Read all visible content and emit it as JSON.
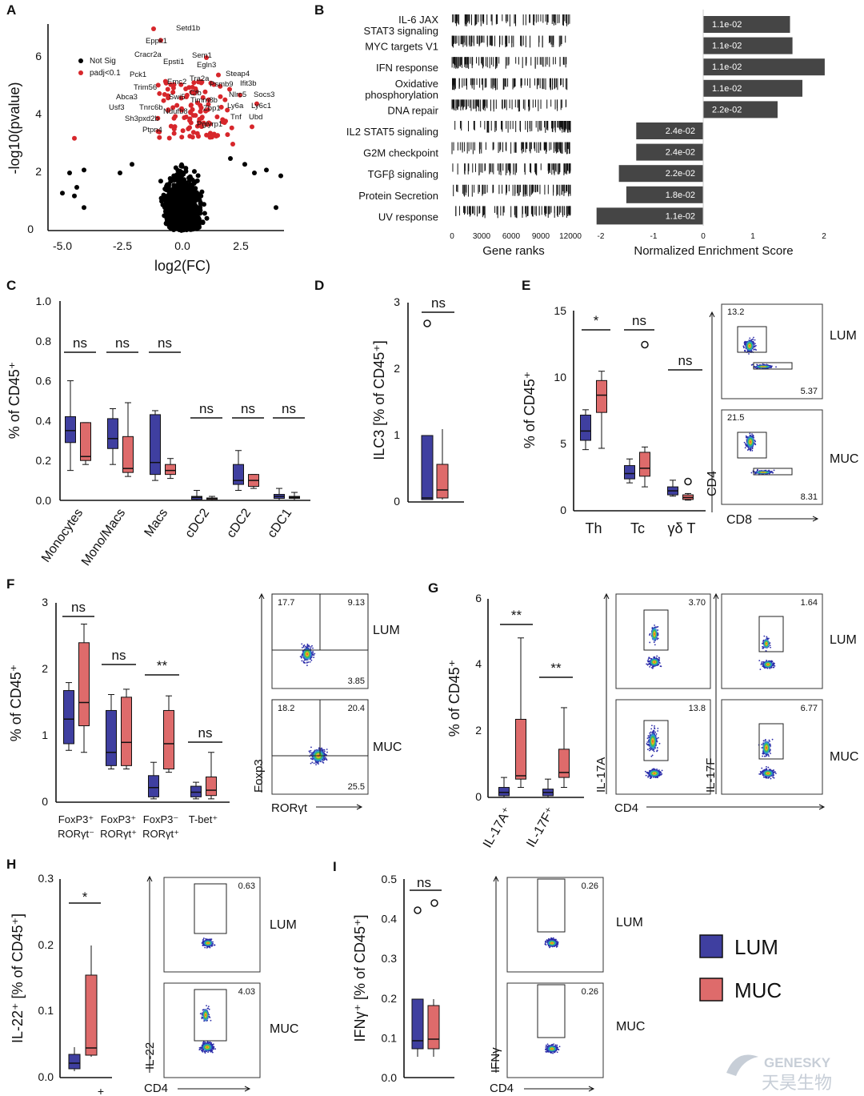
{
  "colors": {
    "lum": "#3f3fa0",
    "muc": "#de6b6b",
    "sig_dot": "#d7262b",
    "ns_dot": "#000000",
    "gsea_bar": "#454545"
  },
  "panels": {
    "A": {
      "label": "A",
      "xlabel": "log2(FC)",
      "ylabel": "-log10(pvalue)",
      "xticks": [
        "-5.0",
        "-2.5",
        "0.0",
        "2.5"
      ],
      "yticks": [
        "0",
        "2",
        "4",
        "6"
      ],
      "legend": [
        "Not Sig",
        "padj<0.1"
      ],
      "genes": [
        "Setd1b",
        "Eppk1",
        "Cracr2a",
        "Sem1",
        "Epsti1",
        "Egln3",
        "Pck1",
        "Emc2",
        "Tra2a",
        "Steap4",
        "Psmb9",
        "Ifit3b",
        "Trim56",
        "Nlrc5",
        "Socs3",
        "Abca3",
        "Swi5",
        "Cfb",
        "Timm8b",
        "Ly6a",
        "Ly6c1",
        "Usf3",
        "Tnrc6b",
        "Ndufb8",
        "Zbp1",
        "Tnf",
        "Ubd",
        "Sh3pxd2b",
        "Pglyrp1",
        "Ptpn4"
      ]
    },
    "B": {
      "label": "B",
      "pathways": [
        "IL-6 JAX\nSTAT3 signaling",
        "MYC targets V1",
        "IFN response",
        "Oxidative\nphosphorylation",
        "DNA repair",
        "IL2 STAT5 signaling",
        "G2M checkpoint",
        "TGFβ signaling",
        "Protein Secretion",
        "UV response"
      ],
      "nes": [
        1.75,
        1.8,
        2.45,
        2.0,
        1.5,
        -1.35,
        -1.35,
        -1.7,
        -1.55,
        -2.15
      ],
      "padj": [
        "1.1e-02",
        "1.1e-02",
        "1.1e-02",
        "1.1e-02",
        "2.2e-02",
        "2.4e-02",
        "2.4e-02",
        "2.2e-02",
        "1.8e-02",
        "1.1e-02"
      ],
      "rank_xticks": [
        "0",
        "3000",
        "6000",
        "9000",
        "12000"
      ],
      "rank_xlabel": "Gene ranks",
      "nes_xticks": [
        "-2",
        "-1",
        "0",
        "1",
        "2"
      ],
      "nes_xlabel": "Normalized Enrichment Score"
    },
    "C": {
      "label": "C",
      "ylabel": "% of CD45⁺",
      "yticks": [
        "0.0",
        "0.2",
        "0.4",
        "0.6",
        "0.8",
        "1.0"
      ],
      "categories": [
        "Monocytes",
        "Mono/Macs",
        "Macs",
        "cDC2",
        "cDC2",
        "cDC1"
      ],
      "sig": [
        "ns",
        "ns",
        "ns",
        "ns",
        "ns",
        "ns"
      ]
    },
    "D": {
      "label": "D",
      "ylabel": "ILC3 [% of CD45⁺]",
      "yticks": [
        "0",
        "1",
        "2",
        "3"
      ],
      "sig": "ns"
    },
    "E": {
      "label": "E",
      "ylabel": "% of CD45⁺",
      "yticks": [
        "0",
        "5",
        "10",
        "15"
      ],
      "categories": [
        "Th",
        "Tc",
        "γδ T"
      ],
      "sig": [
        "*",
        "ns",
        "ns"
      ],
      "facs": {
        "y": "CD4",
        "x": "CD8",
        "lum_top": "13.2",
        "lum_bottom": "5.37",
        "muc_top": "21.5",
        "muc_bottom": "8.31",
        "row_labels": [
          "LUM",
          "MUC"
        ]
      }
    },
    "F": {
      "label": "F",
      "ylabel": "% of CD45⁺",
      "yticks": [
        "0",
        "1",
        "2",
        "3"
      ],
      "categories": [
        "FoxP3⁺\nRORγt⁻",
        "FoxP3⁺\nRORγt⁺",
        "FoxP3⁻\nRORγt⁺",
        "T-bet⁺"
      ],
      "sig": [
        "ns",
        "ns",
        "**",
        "ns"
      ],
      "facs": {
        "y": "Foxp3",
        "x": "RORγt",
        "lum": [
          "17.7",
          "9.13",
          "3.85"
        ],
        "muc": [
          "18.2",
          "20.4",
          "25.5"
        ],
        "row_labels": [
          "LUM",
          "MUC"
        ]
      }
    },
    "G": {
      "label": "G",
      "ylabel": "% of CD45⁺",
      "yticks": [
        "0",
        "2",
        "4",
        "6"
      ],
      "categories": [
        "IL-17A⁺",
        "IL-17F⁺"
      ],
      "sig": [
        "**",
        "**"
      ],
      "facs": {
        "x": "CD4",
        "y1": "IL-17A",
        "y2": "IL-17F",
        "lum": [
          "3.70",
          "1.64"
        ],
        "muc": [
          "13.8",
          "6.77"
        ],
        "row_labels": [
          "LUM",
          "MUC"
        ]
      }
    },
    "H": {
      "label": "H",
      "ylabel": "IL-22⁺ [% of CD45⁺]",
      "yticks": [
        "0.0",
        "0.1",
        "0.2",
        "0.3"
      ],
      "sig": "*",
      "xmark": "+",
      "facs": {
        "x": "CD4",
        "y": "IL-22",
        "lum": "0.63",
        "muc": "4.03",
        "row_labels": [
          "LUM",
          "MUC"
        ]
      }
    },
    "I": {
      "label": "I",
      "ylabel": "IFNγ⁺ [% of CD45⁺]",
      "yticks": [
        "0.0",
        "0.1",
        "0.2",
        "0.3",
        "0.4",
        "0.5"
      ],
      "sig": "ns",
      "facs": {
        "x": "CD4",
        "y": "IFNγ",
        "lum": "0.26",
        "muc": "0.26",
        "row_labels": [
          "LUM",
          "MUC"
        ]
      }
    }
  },
  "legend": {
    "lum": "LUM",
    "muc": "MUC"
  },
  "watermark": {
    "line1": "GENESKY",
    "line2": "天昊生物"
  }
}
